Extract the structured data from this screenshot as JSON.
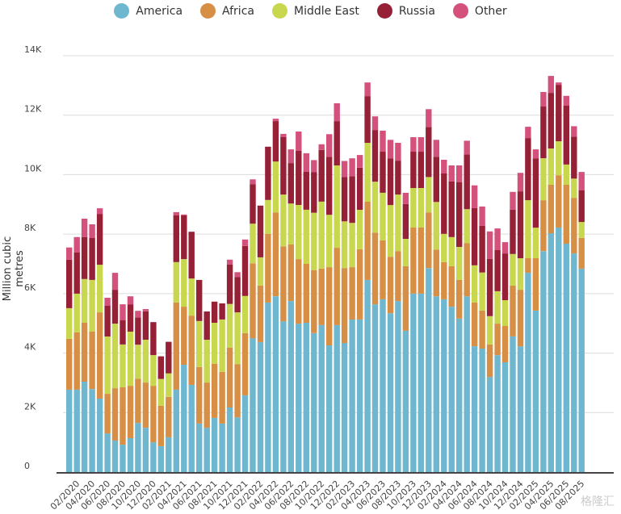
{
  "chart_data": {
    "type": "bar",
    "stacked": true,
    "title": "",
    "xlabel": "",
    "ylabel": "Million cubic metres",
    "ylim": [
      0,
      14000
    ],
    "yticks": [
      "0",
      "2K",
      "4K",
      "6K",
      "8K",
      "10K",
      "12K",
      "14K"
    ],
    "ytick_values": [
      0,
      2000,
      4000,
      6000,
      8000,
      10000,
      12000,
      14000
    ],
    "xtick_labels": [
      "02/2020",
      "04/2020",
      "06/2020",
      "08/2020",
      "10/2020",
      "12/2020",
      "02/2021",
      "04/2021",
      "06/2021",
      "08/2021",
      "10/2021",
      "12/2021",
      "02/2022",
      "04/2022",
      "06/2022",
      "08/2022",
      "10/2022",
      "12/2022",
      "02/2023",
      "04/2023",
      "06/2023",
      "08/2023",
      "10/2023",
      "12/2023",
      "02/2024",
      "04/2024",
      "06/2024",
      "08/2024",
      "10/2024",
      "12/2024",
      "02/2025",
      "04/2025",
      "06/2025",
      "08/2025"
    ],
    "legend_position": "top-center",
    "grid": true,
    "series": [
      {
        "name": "America",
        "color": "#6fb7cf",
        "values": [
          2770,
          2770,
          3040,
          2790,
          2470,
          1300,
          1060,
          920,
          1140,
          1650,
          1490,
          1000,
          870,
          1170,
          2770,
          3610,
          2930,
          1630,
          1490,
          1820,
          1630,
          2170,
          1840,
          2580,
          4500,
          4370,
          5700,
          5910,
          5070,
          5750,
          4990,
          5020,
          4670,
          4940,
          4260,
          4940,
          4340,
          5130,
          5130,
          6460,
          5640,
          5810,
          5340,
          5750,
          4750,
          6000,
          6000,
          6860,
          5910,
          5810,
          5560,
          5160,
          5910,
          4230,
          4150,
          3200,
          3930,
          3690,
          4560,
          4230,
          6700,
          5430,
          7430,
          8030,
          8220,
          7680,
          7350,
          6840
        ]
      },
      {
        "name": "Africa",
        "color": "#d68f45",
        "values": [
          1710,
          1930,
          1980,
          1930,
          2900,
          1330,
          1760,
          1930,
          1760,
          1490,
          1520,
          1900,
          1360,
          1360,
          2930,
          1950,
          2330,
          1900,
          1520,
          1820,
          1740,
          2010,
          1790,
          2090,
          2520,
          1900,
          2310,
          2820,
          2520,
          1900,
          2170,
          1980,
          2120,
          1900,
          2630,
          2600,
          2520,
          1760,
          2360,
          2630,
          2410,
          1980,
          1900,
          1680,
          2170,
          2220,
          2220,
          1870,
          1570,
          1250,
          1360,
          1300,
          1790,
          1470,
          1280,
          1090,
          1060,
          1220,
          1710,
          1900,
          490,
          1760,
          1710,
          1630,
          1760,
          1980,
          1870,
          1030
        ]
      },
      {
        "name": "Middle East",
        "color": "#c9d74f",
        "values": [
          1030,
          1300,
          1470,
          1740,
          1600,
          1930,
          2170,
          1440,
          1820,
          1140,
          1440,
          1030,
          900,
          790,
          1360,
          1600,
          1250,
          1550,
          1440,
          1380,
          1760,
          1470,
          1740,
          1250,
          1330,
          950,
          1140,
          1710,
          1740,
          1380,
          1820,
          1820,
          1930,
          2250,
          1760,
          2770,
          1570,
          1490,
          1330,
          1980,
          1710,
          1600,
          1740,
          1900,
          920,
          1330,
          1330,
          1190,
          1600,
          950,
          980,
          1110,
          1140,
          1250,
          1280,
          950,
          1090,
          870,
          1060,
          1060,
          1950,
          1030,
          1410,
          1220,
          1140,
          680,
          650,
          540
        ]
      },
      {
        "name": "Russia",
        "color": "#962035",
        "values": [
          1630,
          1380,
          1410,
          1410,
          1710,
          1030,
          1140,
          810,
          920,
          920,
          950,
          1110,
          760,
          1060,
          1570,
          1470,
          1570,
          1380,
          950,
          710,
          540,
          1330,
          1190,
          1680,
          1330,
          1740,
          1790,
          1360,
          1930,
          1360,
          1820,
          1280,
          1360,
          1740,
          1950,
          1490,
          1490,
          1570,
          1410,
          1570,
          1740,
          1380,
          1570,
          1140,
          1170,
          1220,
          1220,
          1680,
          1520,
          2030,
          1870,
          2170,
          1840,
          1930,
          1570,
          1930,
          1380,
          1570,
          1490,
          2250,
          2090,
          2330,
          1740,
          1870,
          1900,
          1980,
          1410,
          1060
        ]
      },
      {
        "name": "Other",
        "color": "#d4517c",
        "values": [
          410,
          520,
          620,
          460,
          190,
          270,
          570,
          540,
          270,
          220,
          80,
          0,
          0,
          0,
          110,
          30,
          0,
          0,
          0,
          0,
          0,
          160,
          160,
          220,
          160,
          0,
          0,
          80,
          110,
          460,
          650,
          620,
          410,
          190,
          760,
          600,
          540,
          600,
          430,
          460,
          460,
          710,
          620,
          600,
          380,
          490,
          490,
          600,
          570,
          460,
          540,
          570,
          460,
          760,
          650,
          920,
          730,
          380,
          600,
          620,
          380,
          300,
          490,
          570,
          80,
          330,
          350,
          620
        ]
      }
    ]
  },
  "watermark": "格隆汇"
}
